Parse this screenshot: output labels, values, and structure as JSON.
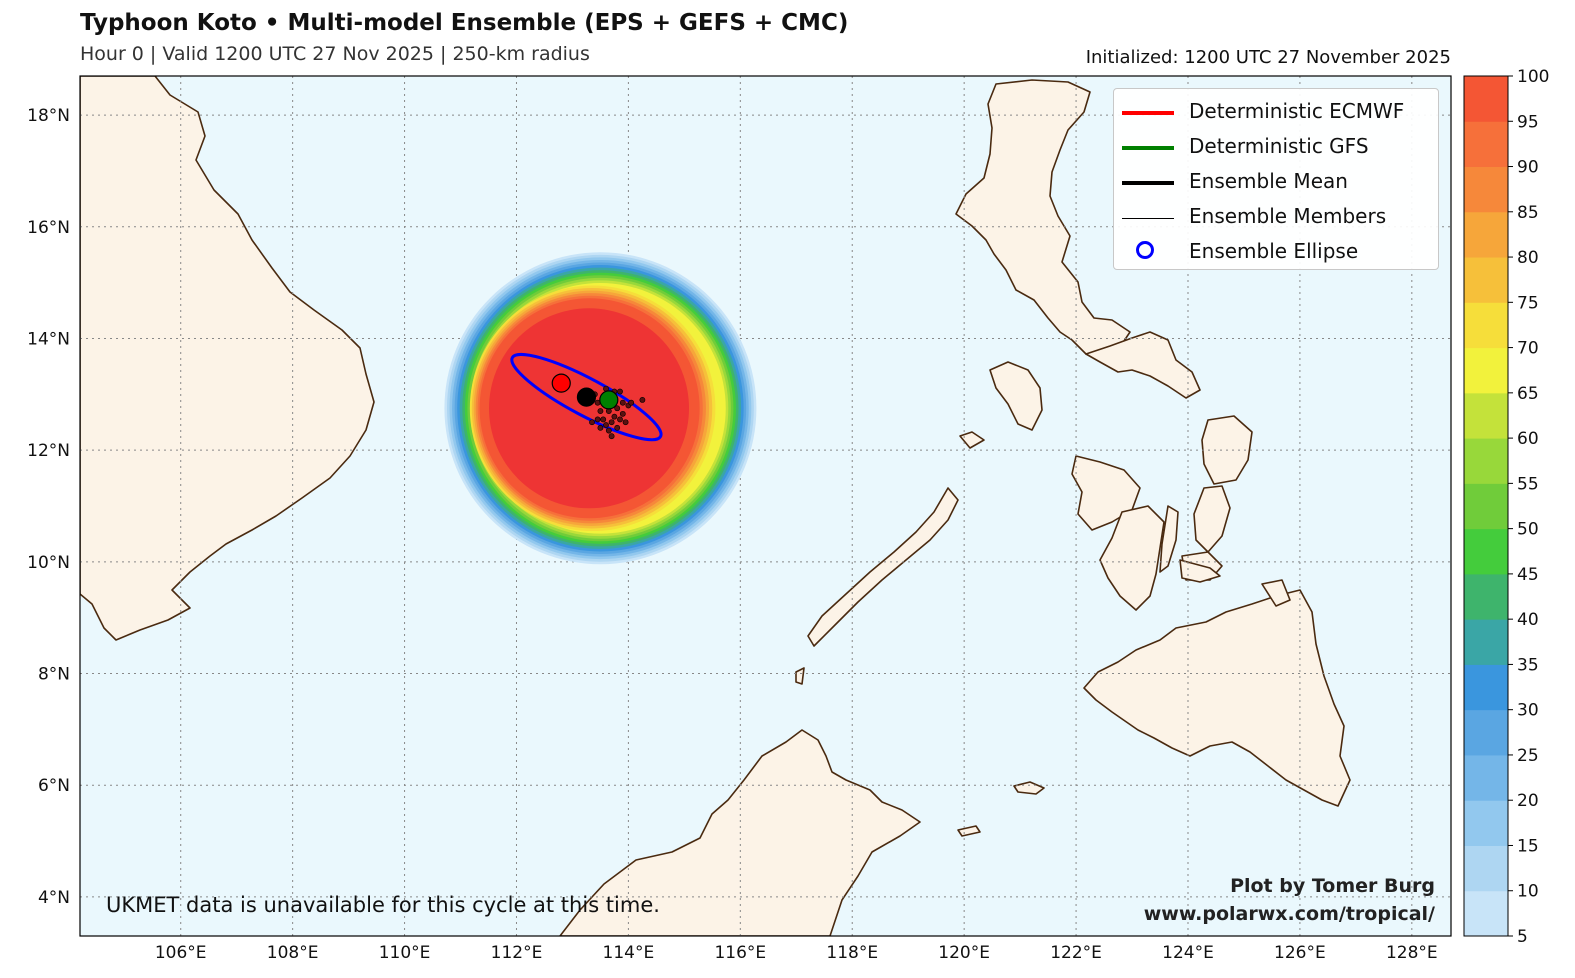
{
  "header": {
    "title": "Typhoon Koto • Multi-model Ensemble (EPS + GEFS + CMC)",
    "subtitle": "Hour 0 | Valid 1200 UTC 27 Nov 2025 | 250-km radius",
    "initialized": "Initialized: 1200 UTC 27 November 2025"
  },
  "map": {
    "lon_range": [
      104.2,
      128.7
    ],
    "lat_range": [
      3.3,
      18.7
    ],
    "lon_ticks": [
      "106°E",
      "108°E",
      "110°E",
      "112°E",
      "114°E",
      "116°E",
      "118°E",
      "120°E",
      "122°E",
      "124°E",
      "126°E",
      "128°E"
    ],
    "lat_ticks": [
      "4°N",
      "6°N",
      "8°N",
      "10°N",
      "12°N",
      "14°N",
      "16°N",
      "18°N"
    ],
    "ocean_color": "#eaf8fd",
    "land_color": "#fcf3e7",
    "coast_color": "#4a2a10"
  },
  "strike_probability": {
    "center": [
      113.5,
      12.75
    ],
    "colorbar_ticks": [
      "5",
      "10",
      "15",
      "20",
      "25",
      "30",
      "35",
      "40",
      "45",
      "50",
      "55",
      "60",
      "65",
      "70",
      "75",
      "80",
      "85",
      "90",
      "95",
      "100"
    ],
    "colors": [
      "#c8e4f8",
      "#aed6f2",
      "#92c8ee",
      "#74b6e8",
      "#5aa6e2",
      "#3a96de",
      "#3aa6a6",
      "#3eb46c",
      "#44cc3c",
      "#70cc3a",
      "#98d83a",
      "#c4e23a",
      "#f2f23c",
      "#f6de3a",
      "#f6c03a",
      "#f6a63a",
      "#f6883a",
      "#f6703a",
      "#f45634",
      "#ee3434"
    ]
  },
  "tracks": {
    "ecmwf": {
      "lon": 112.8,
      "lat": 13.2,
      "color": "#ff0000"
    },
    "gfs": {
      "lon": 113.65,
      "lat": 12.9,
      "color": "#008000"
    },
    "mean": {
      "lon": 113.25,
      "lat": 12.95,
      "color": "#000000"
    },
    "members": [
      [
        113.3,
        12.95
      ],
      [
        113.4,
        13.0
      ],
      [
        113.45,
        12.85
      ],
      [
        113.5,
        12.7
      ],
      [
        113.55,
        12.55
      ],
      [
        113.6,
        12.45
      ],
      [
        113.65,
        12.35
      ],
      [
        113.7,
        12.25
      ],
      [
        113.75,
        12.6
      ],
      [
        113.8,
        12.75
      ],
      [
        113.85,
        13.05
      ],
      [
        113.9,
        12.85
      ],
      [
        114.0,
        12.8
      ],
      [
        113.35,
        12.5
      ],
      [
        113.45,
        12.55
      ],
      [
        113.55,
        12.95
      ],
      [
        113.6,
        13.1
      ],
      [
        113.7,
        12.5
      ],
      [
        113.8,
        12.4
      ],
      [
        113.85,
        12.55
      ],
      [
        113.9,
        12.65
      ],
      [
        114.05,
        12.85
      ],
      [
        114.25,
        12.9
      ],
      [
        113.5,
        12.4
      ],
      [
        113.75,
        13.05
      ],
      [
        113.95,
        12.5
      ],
      [
        113.65,
        12.7
      ]
    ],
    "ellipse": {
      "center": [
        113.25,
        12.95
      ],
      "rx_deg": 1.5,
      "ry_deg": 0.33,
      "angle_deg": 28,
      "color": "#0000ff"
    }
  },
  "legend": {
    "items": [
      {
        "label": "Deterministic ECMWF",
        "color": "#ff0000",
        "kind": "line-thick"
      },
      {
        "label": "Deterministic GFS",
        "color": "#008000",
        "kind": "line-thick"
      },
      {
        "label": "Ensemble Mean",
        "color": "#000000",
        "kind": "line-thick"
      },
      {
        "label": "Ensemble Members",
        "color": "#000000",
        "kind": "line-thin"
      },
      {
        "label": "Ensemble Ellipse",
        "color": "#0000ff",
        "kind": "circle"
      }
    ]
  },
  "credits": {
    "line1": "Plot by Tomer Burg",
    "line2": "www.polarwx.com/tropical/"
  },
  "note": "UKMET data is unavailable for this cycle at this time."
}
